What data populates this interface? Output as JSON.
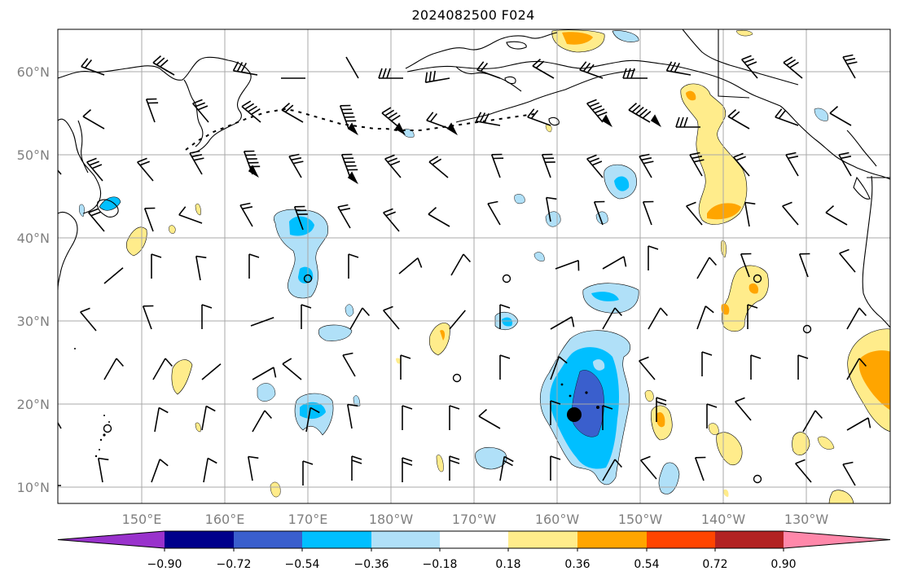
{
  "title": "2024082500 F024",
  "lon_labels": [
    "150°E",
    "160°E",
    "170°E",
    "180°W",
    "170°W",
    "160°W",
    "150°W",
    "140°W",
    "130°W"
  ],
  "lat_labels": [
    "60°N",
    "50°N",
    "40°N",
    "30°N",
    "20°N",
    "10°N"
  ],
  "colorbar": {
    "tick_labels": [
      "−0.90",
      "−0.72",
      "−0.54",
      "−0.36",
      "−0.18",
      "0.18",
      "0.36",
      "0.54",
      "0.72",
      "0.90"
    ],
    "colors": [
      "#9932cc",
      "#00008b",
      "#3a5fcd",
      "#00bfff",
      "#b0e0f8",
      "#ffffff",
      "#ffec8b",
      "#ffa500",
      "#ff4500",
      "#b22222",
      "#ff88aa"
    ]
  },
  "fill_colors": {
    "light_blue": "#b0e0f8",
    "deep_sky_blue": "#00bfff",
    "royal_blue": "#3a5fcd",
    "light_yellow": "#ffec8b",
    "orange": "#ffa500"
  }
}
